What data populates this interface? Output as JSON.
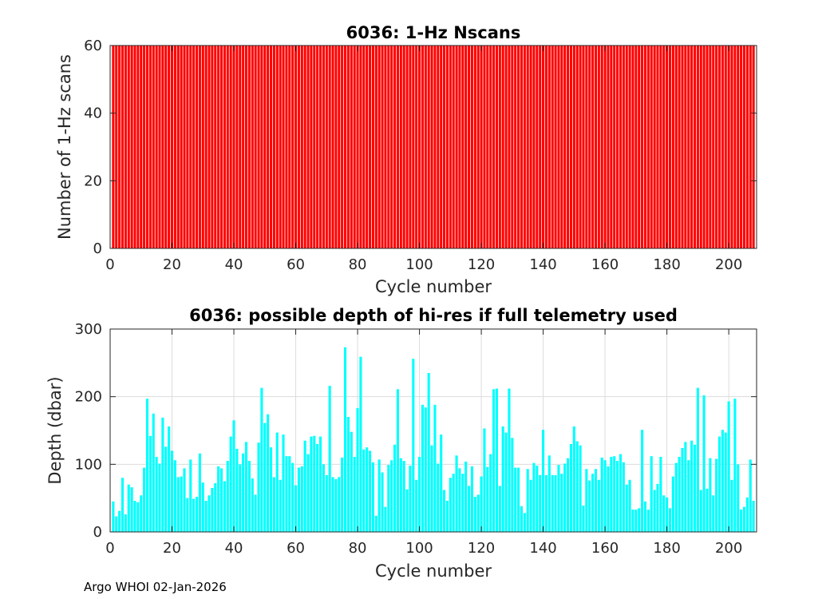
{
  "footer": "Argo WHOI 02-Jan-2026",
  "colors": {
    "top_bar": "#ff0000",
    "bottom_bar": "#00ffff",
    "axis": "#262626",
    "grid": "#dcdcdc"
  },
  "chart_data": [
    {
      "type": "bar",
      "title": "6036: 1-Hz Nscans",
      "xlabel": "Cycle number",
      "ylabel": "Number of 1-Hz scans",
      "xlim": [
        0,
        209
      ],
      "ylim": [
        0,
        60
      ],
      "xticks": [
        0,
        20,
        40,
        60,
        80,
        100,
        120,
        140,
        160,
        180,
        200
      ],
      "yticks": [
        0,
        20,
        40,
        60
      ],
      "grid": false,
      "x_start": 1,
      "values": [
        60,
        60,
        60,
        60,
        60,
        60,
        60,
        60,
        60,
        60,
        60,
        60,
        60,
        60,
        60,
        60,
        60,
        60,
        60,
        60,
        60,
        60,
        60,
        60,
        60,
        60,
        60,
        60,
        60,
        60,
        60,
        60,
        60,
        60,
        60,
        60,
        60,
        60,
        60,
        60,
        60,
        60,
        60,
        60,
        60,
        60,
        60,
        60,
        60,
        60,
        60,
        60,
        60,
        60,
        60,
        60,
        60,
        60,
        60,
        60,
        60,
        60,
        60,
        60,
        60,
        60,
        60,
        60,
        60,
        60,
        60,
        60,
        60,
        60,
        60,
        60,
        60,
        60,
        60,
        60,
        60,
        60,
        60,
        60,
        60,
        60,
        60,
        60,
        60,
        60,
        60,
        60,
        60,
        60,
        60,
        60,
        60,
        60,
        60,
        60,
        60,
        60,
        60,
        60,
        60,
        60,
        60,
        60,
        60,
        60,
        60,
        60,
        60,
        60,
        60,
        60,
        60,
        60,
        60,
        60,
        60,
        60,
        60,
        60,
        60,
        60,
        60,
        60,
        60,
        60,
        60,
        60,
        60,
        60,
        60,
        60,
        60,
        60,
        60,
        60,
        60,
        60,
        60,
        60,
        60,
        60,
        60,
        60,
        60,
        60,
        60,
        60,
        60,
        60,
        60,
        60,
        60,
        60,
        60,
        60,
        60,
        60,
        60,
        60,
        60,
        60,
        60,
        60,
        60,
        60,
        60,
        60,
        60,
        60,
        60,
        60,
        60,
        60,
        60,
        60,
        60,
        60,
        60,
        60,
        60,
        60,
        60,
        60,
        60,
        60,
        60,
        60,
        60,
        60,
        60,
        60,
        60,
        60,
        60,
        60,
        60,
        60,
        60,
        60,
        60,
        60,
        60,
        60
      ]
    },
    {
      "type": "bar",
      "title": "6036: possible depth of hi-res if full telemetry used",
      "xlabel": "Cycle number",
      "ylabel": "Depth (dbar)",
      "xlim": [
        0,
        209
      ],
      "ylim": [
        0,
        300
      ],
      "xticks": [
        0,
        20,
        40,
        60,
        80,
        100,
        120,
        140,
        160,
        180,
        200
      ],
      "yticks": [
        0,
        100,
        200,
        300
      ],
      "grid": true,
      "x_start": 1,
      "values": [
        45,
        23,
        31,
        80,
        26,
        70,
        66,
        46,
        44,
        54,
        95,
        197,
        142,
        175,
        111,
        101,
        169,
        126,
        156,
        120,
        106,
        81,
        82,
        94,
        50,
        107,
        49,
        52,
        116,
        73,
        46,
        54,
        65,
        72,
        97,
        94,
        75,
        105,
        141,
        165,
        123,
        100,
        116,
        133,
        105,
        79,
        55,
        132,
        213,
        161,
        174,
        125,
        81,
        147,
        77,
        144,
        112,
        112,
        102,
        69,
        95,
        97,
        135,
        115,
        141,
        142,
        130,
        141,
        100,
        84,
        216,
        81,
        78,
        81,
        110,
        273,
        170,
        148,
        111,
        183,
        259,
        122,
        125,
        120,
        103,
        24,
        107,
        88,
        37,
        99,
        106,
        129,
        211,
        109,
        105,
        63,
        98,
        256,
        77,
        111,
        188,
        184,
        235,
        128,
        188,
        101,
        144,
        62,
        46,
        80,
        86,
        113,
        94,
        86,
        104,
        68,
        97,
        52,
        55,
        82,
        153,
        96,
        115,
        211,
        212,
        68,
        156,
        147,
        212,
        139,
        95,
        95,
        38,
        28,
        93,
        77,
        102,
        98,
        84,
        151,
        84,
        113,
        84,
        84,
        99,
        86,
        101,
        109,
        130,
        156,
        134,
        128,
        39,
        93,
        76,
        86,
        93,
        77,
        110,
        106,
        97,
        111,
        112,
        105,
        115,
        103,
        70,
        77,
        33,
        33,
        35,
        151,
        45,
        33,
        112,
        62,
        71,
        111,
        54,
        51,
        35,
        82,
        102,
        111,
        124,
        133,
        106,
        135,
        129,
        213,
        62,
        202,
        64,
        109,
        54,
        108,
        141,
        151,
        147,
        193,
        77,
        197,
        100,
        33,
        37,
        51,
        107,
        46
      ]
    }
  ]
}
